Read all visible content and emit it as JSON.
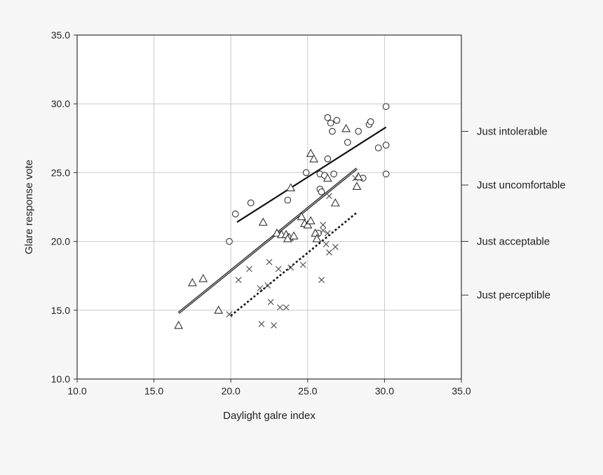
{
  "chart_data": {
    "type": "scatter",
    "title": "",
    "xlabel": "Daylight galre index",
    "ylabel": "Glare response vote",
    "xlim": [
      10,
      35
    ],
    "ylim": [
      10,
      35
    ],
    "xticks": [
      "10.0",
      "15.0",
      "20.0",
      "25.0",
      "30.0",
      "35.0"
    ],
    "yticks": [
      "10.0",
      "15.0",
      "20.0",
      "25.0",
      "30.0",
      "35.0"
    ],
    "grid": true,
    "legend": "none",
    "right_axis_labels": [
      {
        "label": "Just intolerable",
        "y": 28.0
      },
      {
        "label": "Just uncomfortable",
        "y": 24.1
      },
      {
        "label": "Just acceptable",
        "y": 20.0
      },
      {
        "label": "Just perceptible",
        "y": 16.1
      }
    ],
    "series": [
      {
        "marker": "circle",
        "points": [
          [
            19.9,
            20.0
          ],
          [
            20.3,
            22.0
          ],
          [
            21.3,
            22.8
          ],
          [
            23.7,
            23.0
          ],
          [
            24.9,
            25.0
          ],
          [
            25.8,
            24.9
          ],
          [
            25.8,
            23.8
          ],
          [
            25.9,
            23.6
          ],
          [
            26.1,
            24.8
          ],
          [
            26.7,
            24.9
          ],
          [
            26.3,
            26.0
          ],
          [
            26.3,
            29.0
          ],
          [
            26.5,
            28.6
          ],
          [
            26.6,
            28.0
          ],
          [
            26.9,
            28.8
          ],
          [
            27.6,
            27.2
          ],
          [
            28.3,
            28.0
          ],
          [
            29.0,
            28.5
          ],
          [
            29.1,
            28.7
          ],
          [
            29.6,
            26.8
          ],
          [
            30.1,
            27.0
          ],
          [
            30.1,
            29.8
          ],
          [
            30.1,
            24.9
          ],
          [
            28.6,
            24.6
          ],
          [
            25.7,
            20.6
          ]
        ]
      },
      {
        "marker": "triangle",
        "points": [
          [
            16.6,
            13.9
          ],
          [
            17.5,
            17.0
          ],
          [
            18.2,
            17.3
          ],
          [
            19.2,
            15.0
          ],
          [
            22.1,
            21.4
          ],
          [
            23.0,
            20.6
          ],
          [
            23.3,
            20.5
          ],
          [
            23.6,
            20.5
          ],
          [
            23.8,
            20.3
          ],
          [
            23.7,
            20.2
          ],
          [
            23.9,
            23.9
          ],
          [
            24.1,
            20.4
          ],
          [
            24.6,
            21.8
          ],
          [
            24.8,
            21.3
          ],
          [
            25.0,
            21.2
          ],
          [
            25.2,
            21.5
          ],
          [
            25.2,
            26.4
          ],
          [
            25.4,
            26.0
          ],
          [
            25.5,
            20.6
          ],
          [
            25.6,
            20.2
          ],
          [
            26.3,
            24.6
          ],
          [
            26.8,
            22.8
          ],
          [
            27.5,
            28.2
          ],
          [
            28.2,
            24.0
          ],
          [
            28.3,
            24.7
          ]
        ]
      },
      {
        "marker": "cross",
        "points": [
          [
            19.9,
            14.7
          ],
          [
            20.5,
            17.2
          ],
          [
            21.2,
            18.0
          ],
          [
            21.9,
            16.6
          ],
          [
            22.0,
            14.0
          ],
          [
            22.4,
            16.8
          ],
          [
            22.5,
            18.5
          ],
          [
            22.6,
            15.6
          ],
          [
            22.8,
            13.9
          ],
          [
            23.1,
            18.0
          ],
          [
            23.2,
            15.2
          ],
          [
            23.6,
            15.2
          ],
          [
            23.9,
            18.1
          ],
          [
            24.7,
            18.3
          ],
          [
            25.9,
            17.2
          ],
          [
            26.0,
            21.2
          ],
          [
            26.0,
            20.8
          ],
          [
            26.2,
            19.8
          ],
          [
            26.3,
            20.6
          ],
          [
            26.4,
            19.2
          ],
          [
            26.4,
            23.3
          ],
          [
            26.8,
            19.6
          ],
          [
            28.1,
            24.6
          ]
        ]
      }
    ],
    "trend_lines": [
      {
        "style": "solid",
        "from": [
          20.4,
          21.4
        ],
        "to": [
          30.1,
          28.3
        ]
      },
      {
        "style": "double",
        "from": [
          16.6,
          14.8
        ],
        "to": [
          28.2,
          25.3
        ]
      },
      {
        "style": "dotted",
        "from": [
          20.0,
          14.6
        ],
        "to": [
          28.2,
          22.1
        ]
      }
    ]
  }
}
